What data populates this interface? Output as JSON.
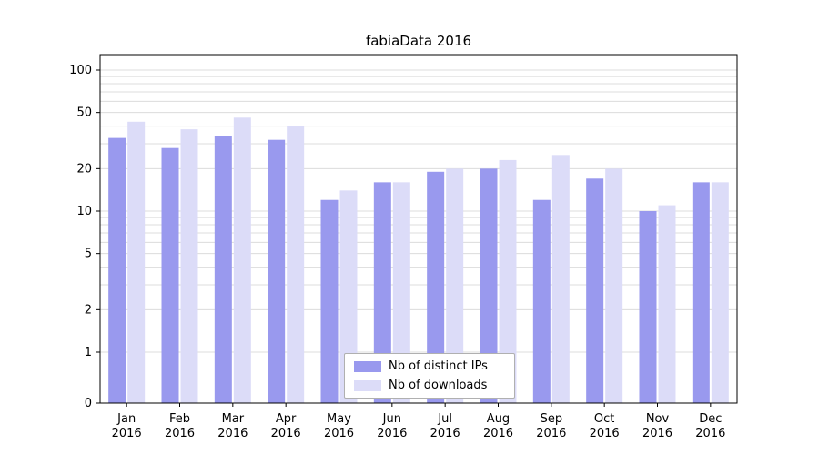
{
  "chart_data": {
    "type": "bar",
    "title": "fabiaData 2016",
    "categories": [
      "Jan",
      "Feb",
      "Mar",
      "Apr",
      "May",
      "Jun",
      "Jul",
      "Aug",
      "Sep",
      "Oct",
      "Nov",
      "Dec"
    ],
    "year_label": "2016",
    "series": [
      {
        "name": "Nb of distinct IPs",
        "color": "#9999ee",
        "values": [
          33,
          28,
          34,
          32,
          12,
          16,
          19,
          20,
          12,
          17,
          10,
          16
        ]
      },
      {
        "name": "Nb of downloads",
        "color": "#dcdcf8",
        "values": [
          43,
          38,
          46,
          40,
          14,
          16,
          20,
          23,
          25,
          20,
          11,
          16
        ]
      }
    ],
    "yticks": [
      0,
      1,
      2,
      5,
      10,
      20,
      50,
      100
    ],
    "yscale": "symlog",
    "ylim": [
      0,
      130
    ],
    "grid": true,
    "grid_color": "#dcdcdc",
    "legend_position": "bottom-center"
  }
}
